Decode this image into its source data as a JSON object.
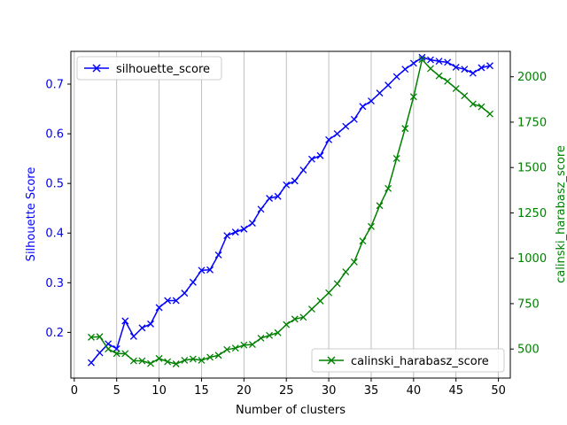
{
  "chart_data": {
    "type": "line",
    "title": "",
    "xlabel": "Number of clusters",
    "ylabel_left": "Silhouette Score",
    "ylabel_right": "calinski_harabasz_score",
    "xlim": [
      -0.4,
      51.4
    ],
    "ylim_left": [
      0.108,
      0.766
    ],
    "ylim_right": [
      340,
      2140
    ],
    "xticks": [
      0,
      5,
      10,
      15,
      20,
      25,
      30,
      35,
      40,
      45,
      50
    ],
    "yticks_left": [
      0.2,
      0.3,
      0.4,
      0.5,
      0.6,
      0.7
    ],
    "yticks_right": [
      500,
      750,
      1000,
      1250,
      1500,
      1750,
      2000
    ],
    "grid": "x",
    "x": [
      2,
      3,
      4,
      5,
      6,
      7,
      8,
      9,
      10,
      11,
      12,
      13,
      14,
      15,
      16,
      17,
      18,
      19,
      20,
      21,
      22,
      23,
      24,
      25,
      26,
      27,
      28,
      29,
      30,
      31,
      32,
      33,
      34,
      35,
      36,
      37,
      38,
      39,
      40,
      41,
      42,
      43,
      44,
      45,
      46,
      47,
      48,
      49
    ],
    "series": [
      {
        "name": "silhouette_score",
        "axis": "left",
        "color": "#0000ff",
        "marker": "x",
        "values": [
          0.139,
          0.159,
          0.177,
          0.167,
          0.223,
          0.192,
          0.209,
          0.217,
          0.25,
          0.264,
          0.264,
          0.279,
          0.301,
          0.325,
          0.326,
          0.356,
          0.395,
          0.402,
          0.408,
          0.42,
          0.448,
          0.47,
          0.474,
          0.497,
          0.505,
          0.527,
          0.549,
          0.556,
          0.588,
          0.6,
          0.615,
          0.629,
          0.655,
          0.666,
          0.682,
          0.698,
          0.715,
          0.73,
          0.742,
          0.754,
          0.749,
          0.746,
          0.744,
          0.734,
          0.73,
          0.722,
          0.733,
          0.737
        ]
      },
      {
        "name": "calinski_harabasz_score",
        "axis": "right",
        "color": "#008000",
        "marker": "x",
        "values": [
          565,
          568,
          500,
          475,
          475,
          435,
          435,
          420,
          448,
          430,
          418,
          438,
          445,
          438,
          455,
          465,
          497,
          505,
          522,
          525,
          560,
          575,
          590,
          635,
          665,
          675,
          720,
          765,
          810,
          860,
          925,
          980,
          1095,
          1175,
          1290,
          1385,
          1550,
          1715,
          1890,
          2095,
          2045,
          2005,
          1975,
          1935,
          1895,
          1850,
          1835,
          1795
        ]
      }
    ],
    "legend_left": "upper left",
    "legend_right": "lower right"
  }
}
